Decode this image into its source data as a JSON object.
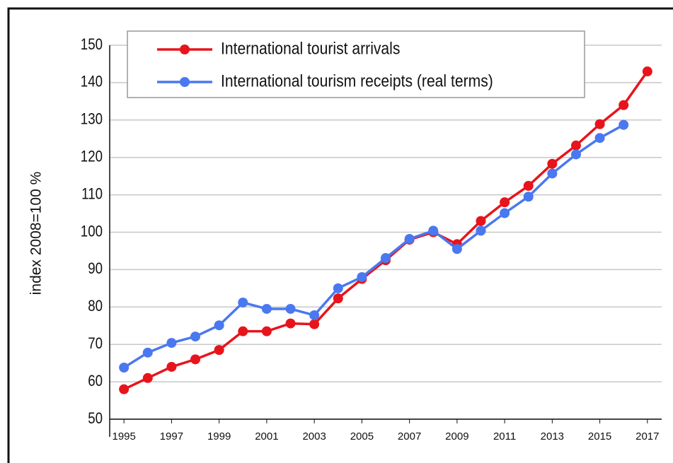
{
  "chart_data": {
    "type": "line",
    "ylabel": "index 2008=100 %",
    "x": [
      1995,
      1996,
      1997,
      1998,
      1999,
      2000,
      2001,
      2002,
      2003,
      2004,
      2005,
      2006,
      2007,
      2008,
      2009,
      2010,
      2011,
      2012,
      2013,
      2014,
      2015,
      2016,
      2017
    ],
    "series": [
      {
        "name": "International tourist arrivals",
        "color": "#e8141b",
        "values": [
          58,
          61,
          64,
          66,
          68.5,
          73.5,
          73.5,
          75.6,
          75.4,
          82.3,
          87.5,
          92.5,
          98,
          100,
          96.8,
          103,
          108,
          112.4,
          118.3,
          123.2,
          128.9,
          134,
          143
        ]
      },
      {
        "name": "International tourism receipts (real terms)",
        "color": "#4a78f0",
        "values": [
          63.8,
          67.8,
          70.4,
          72.1,
          75.1,
          81.2,
          79.5,
          79.5,
          77.8,
          85,
          88,
          93.1,
          98.2,
          100.4,
          95.5,
          100.4,
          105.1,
          109.5,
          115.7,
          120.8,
          125.2,
          128.7,
          null
        ]
      }
    ],
    "xlim": [
      1994.4,
      2017.6
    ],
    "xticks": [
      1995,
      1997,
      1999,
      2001,
      2003,
      2005,
      2007,
      2009,
      2011,
      2013,
      2015,
      2017
    ],
    "ylim": [
      50,
      150
    ],
    "yticks": [
      50,
      60,
      70,
      80,
      90,
      100,
      110,
      120,
      130,
      140,
      150
    ],
    "grid": true,
    "legend": "top"
  }
}
